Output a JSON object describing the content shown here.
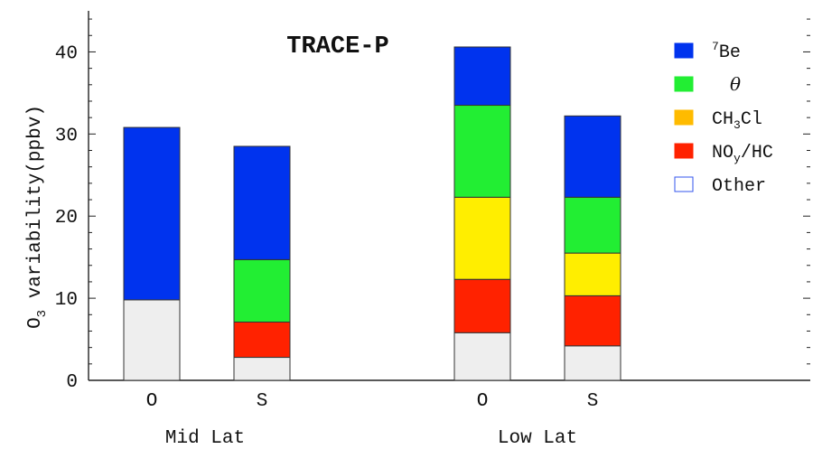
{
  "chart_data": {
    "type": "bar",
    "stacked": true,
    "title": "TRACE-P",
    "ylabel": "O3 variability(ppbv)",
    "ylabel_main": "O",
    "ylabel_sub": "3",
    "ylabel_rest": " variability(ppbv)",
    "ylim": [
      0,
      45
    ],
    "yticks": [
      0,
      10,
      20,
      30,
      40
    ],
    "ytick_labels": [
      "0",
      "10",
      "20",
      "30",
      "40"
    ],
    "legend_position": "top-right",
    "groups": [
      {
        "label": "Mid Lat",
        "categories": [
          "O",
          "S"
        ]
      },
      {
        "label": "Low Lat",
        "categories": [
          "O",
          "S"
        ]
      }
    ],
    "categories": [
      "O",
      "S",
      "O",
      "S"
    ],
    "series": [
      {
        "name": "Other",
        "color": "#eeeeee",
        "values": [
          9.8,
          2.8,
          5.8,
          4.2
        ]
      },
      {
        "name": "NOy/HC",
        "color": "#ff2200",
        "values": [
          0,
          4.3,
          6.5,
          6.1
        ]
      },
      {
        "name": "CH3Cl",
        "color": "#ffee00",
        "values": [
          0,
          0,
          10.0,
          5.2
        ]
      },
      {
        "name": "θ",
        "color": "#22ee33",
        "values": [
          0,
          7.6,
          11.2,
          6.8
        ]
      },
      {
        "name": "7Be",
        "color": "#0033ee",
        "values": [
          21.0,
          13.8,
          7.1,
          9.9
        ]
      }
    ],
    "legend": [
      {
        "key": "7Be",
        "sup": "7",
        "text": "Be",
        "color": "#0033ee"
      },
      {
        "key": "theta",
        "text": "θ",
        "color": "#22ee33"
      },
      {
        "key": "CH3Cl",
        "parts": [
          "CH",
          "3",
          "Cl"
        ],
        "color": "#ffbb00"
      },
      {
        "key": "NOyHC",
        "parts": [
          "NO",
          "y",
          "/HC"
        ],
        "color": "#ff2200"
      },
      {
        "key": "Other",
        "text": "Other",
        "color": "#ffffff",
        "border": "#3355ee"
      }
    ]
  }
}
